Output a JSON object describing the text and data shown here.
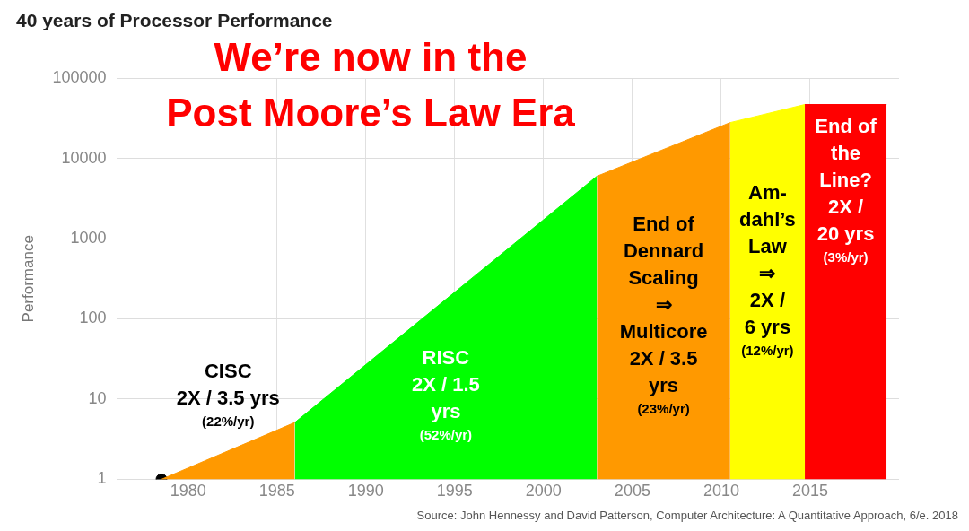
{
  "chart_data": {
    "type": "area",
    "title": "40 years of Processor Performance",
    "ylabel": "Performance",
    "xlim": [
      1976,
      2020
    ],
    "xticks": [
      1980,
      1985,
      1990,
      1995,
      2000,
      2005,
      2010,
      2015
    ],
    "ylim": [
      1,
      100000
    ],
    "yticks": [
      1,
      10,
      100,
      1000,
      10000,
      100000
    ],
    "log": "y",
    "grid": true,
    "legend": false,
    "series": [
      {
        "color": "#ff9900",
        "x": [
          1978.5,
          1986
        ],
        "values": [
          1,
          5.1
        ]
      },
      {
        "color": "#00ff00",
        "x": [
          1986,
          2003
        ],
        "values": [
          5.1,
          6000
        ]
      },
      {
        "color": "#ff9900",
        "x": [
          2003,
          2010.5
        ],
        "values": [
          6000,
          28000
        ]
      },
      {
        "color": "#ffff00",
        "x": [
          2010.5,
          2014.7
        ],
        "values": [
          28000,
          47000
        ]
      },
      {
        "color": "#ff0000",
        "x": [
          2014.7,
          2019.3
        ],
        "values": [
          47000,
          47000
        ]
      },
      {
        "type": "scatter",
        "color": "#000000",
        "x": [
          1978.5
        ],
        "values": [
          1
        ]
      }
    ],
    "annotations": [
      "We’re now in the\nPost Moore’s Law Era",
      "CISC\n2X / 3.5 yrs\n(22%/yr)",
      "RISC\n2X / 1.5\nyrs\n(52%/yr)",
      "End of\nDennard\nScaling\n⇒\nMulticore\n2X / 3.5\nyrs\n(23%/yr)",
      "Am-\ndahl’s\nLaw\n⇒\n2X /\n6 yrs\n(12%/yr)",
      "End of\nthe\nLine?\n2X /\n20 yrs\n(3%/yr)",
      "Source: John Hennessy and David Patterson, Computer Architecture: A Quantitative Approach, 6/e. 2018"
    ]
  }
}
